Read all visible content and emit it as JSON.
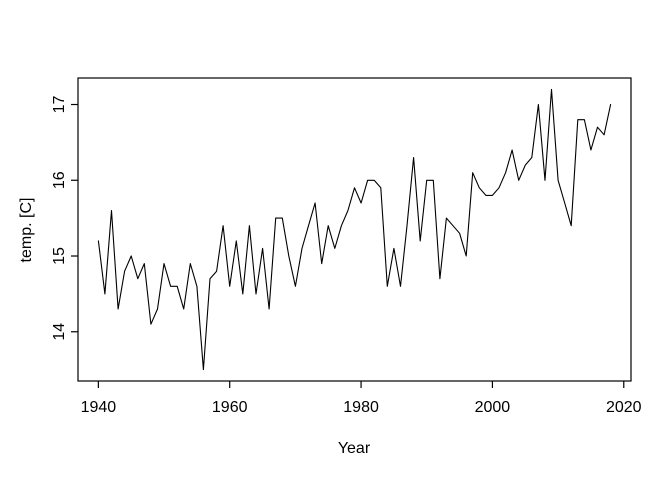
{
  "figure": {
    "background": "#ffffff",
    "foreground": "#000000"
  },
  "chart_data": {
    "type": "line",
    "title": "",
    "xlabel": "Year",
    "ylabel": "temp. [C]",
    "legend": null,
    "grid": false,
    "years": {
      "start": 1940,
      "end": 2018,
      "step": 1
    },
    "values": [
      15.2,
      14.5,
      15.6,
      14.3,
      14.8,
      15.0,
      14.7,
      14.9,
      14.1,
      14.3,
      14.9,
      14.6,
      14.6,
      14.3,
      14.9,
      14.6,
      13.5,
      14.7,
      14.8,
      15.4,
      14.6,
      15.2,
      14.5,
      15.4,
      14.5,
      15.1,
      14.3,
      15.5,
      15.5,
      15.0,
      14.6,
      15.1,
      15.4,
      15.7,
      14.9,
      15.4,
      15.1,
      15.4,
      15.6,
      15.9,
      15.7,
      16.0,
      16.0,
      15.9,
      14.6,
      15.1,
      14.6,
      15.4,
      16.3,
      15.2,
      16.0,
      16.0,
      14.7,
      15.5,
      15.4,
      15.3,
      15.0,
      16.1,
      15.9,
      15.8,
      15.8,
      15.9,
      16.1,
      16.4,
      16.0,
      16.2,
      16.3,
      17.0,
      16.0,
      17.2,
      16.0,
      15.7,
      15.4,
      16.8,
      16.8,
      16.4,
      16.7,
      16.6,
      17.0
    ],
    "x_ticks": [
      1940,
      1960,
      1980,
      2000,
      2020
    ],
    "y_ticks": [
      14,
      15,
      16,
      17
    ],
    "xlim": [
      1936.9,
      2021.1
    ],
    "ylim": [
      13.35,
      17.35
    ],
    "line_color": "#000000",
    "axis_color": "#000000"
  }
}
